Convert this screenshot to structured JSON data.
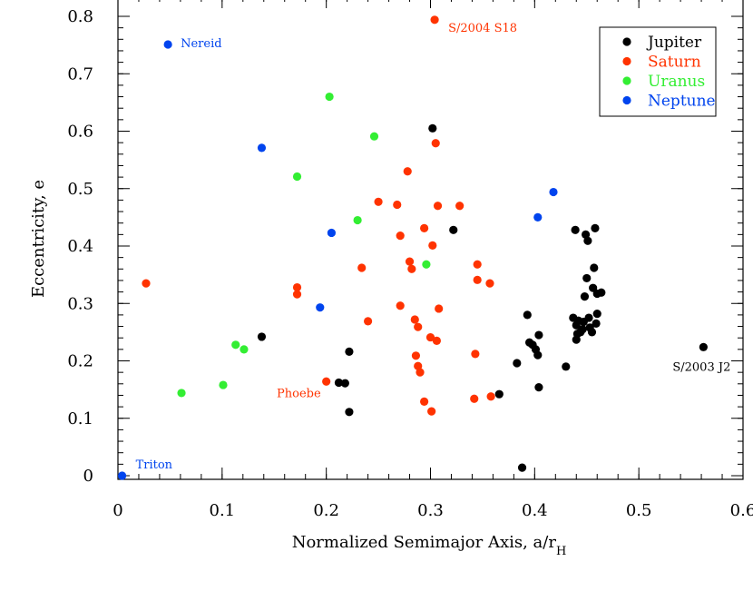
{
  "chart_data": {
    "type": "scatter",
    "xlabel": "Normalized Semimajor Axis, a/r",
    "xlabel_subscript": "H",
    "ylabel": "Eccentricity, e",
    "xlim": [
      0,
      0.6
    ],
    "ylim": [
      0,
      0.8
    ],
    "x_ticks": [
      "0",
      "0.1",
      "0.2",
      "0.3",
      "0.4",
      "0.5",
      "0.6"
    ],
    "y_ticks": [
      "0",
      "0.1",
      "0.2",
      "0.3",
      "0.4",
      "0.5",
      "0.6",
      "0.7",
      "0.8"
    ],
    "legend_position": "top-right",
    "series": [
      {
        "name": "Jupiter",
        "color": "#000000",
        "points": [
          [
            0.302,
            0.605
          ],
          [
            0.322,
            0.428
          ],
          [
            0.138,
            0.242
          ],
          [
            0.222,
            0.216
          ],
          [
            0.212,
            0.162
          ],
          [
            0.218,
            0.161
          ],
          [
            0.222,
            0.111
          ],
          [
            0.366,
            0.142
          ],
          [
            0.383,
            0.196
          ],
          [
            0.393,
            0.28
          ],
          [
            0.395,
            0.232
          ],
          [
            0.398,
            0.228
          ],
          [
            0.401,
            0.22
          ],
          [
            0.403,
            0.21
          ],
          [
            0.404,
            0.245
          ],
          [
            0.404,
            0.154
          ],
          [
            0.388,
            0.014
          ],
          [
            0.43,
            0.19
          ],
          [
            0.437,
            0.275
          ],
          [
            0.439,
            0.428
          ],
          [
            0.44,
            0.262
          ],
          [
            0.442,
            0.27
          ],
          [
            0.444,
            0.25
          ],
          [
            0.44,
            0.237
          ],
          [
            0.447,
            0.268
          ],
          [
            0.448,
            0.312
          ],
          [
            0.449,
            0.42
          ],
          [
            0.45,
            0.344
          ],
          [
            0.451,
            0.409
          ],
          [
            0.452,
            0.275
          ],
          [
            0.455,
            0.25
          ],
          [
            0.457,
            0.362
          ],
          [
            0.456,
            0.327
          ],
          [
            0.458,
            0.431
          ],
          [
            0.459,
            0.265
          ],
          [
            0.46,
            0.282
          ],
          [
            0.46,
            0.317
          ],
          [
            0.464,
            0.319
          ],
          [
            0.562,
            0.224
          ],
          [
            0.446,
            0.255
          ],
          [
            0.441,
            0.247
          ],
          [
            0.453,
            0.258
          ]
        ]
      },
      {
        "name": "Saturn",
        "color": "#ff3300",
        "points": [
          [
            0.304,
            0.794
          ],
          [
            0.305,
            0.579
          ],
          [
            0.278,
            0.53
          ],
          [
            0.25,
            0.477
          ],
          [
            0.268,
            0.472
          ],
          [
            0.307,
            0.47
          ],
          [
            0.328,
            0.47
          ],
          [
            0.294,
            0.431
          ],
          [
            0.271,
            0.418
          ],
          [
            0.302,
            0.401
          ],
          [
            0.28,
            0.373
          ],
          [
            0.282,
            0.36
          ],
          [
            0.345,
            0.368
          ],
          [
            0.345,
            0.341
          ],
          [
            0.357,
            0.335
          ],
          [
            0.234,
            0.362
          ],
          [
            0.172,
            0.328
          ],
          [
            0.172,
            0.316
          ],
          [
            0.027,
            0.335
          ],
          [
            0.271,
            0.296
          ],
          [
            0.308,
            0.291
          ],
          [
            0.285,
            0.272
          ],
          [
            0.288,
            0.259
          ],
          [
            0.24,
            0.269
          ],
          [
            0.3,
            0.241
          ],
          [
            0.306,
            0.235
          ],
          [
            0.343,
            0.212
          ],
          [
            0.286,
            0.209
          ],
          [
            0.288,
            0.191
          ],
          [
            0.29,
            0.18
          ],
          [
            0.2,
            0.164
          ],
          [
            0.294,
            0.129
          ],
          [
            0.301,
            0.112
          ],
          [
            0.342,
            0.134
          ],
          [
            0.358,
            0.138
          ]
        ]
      },
      {
        "name": "Uranus",
        "color": "#33ee33",
        "points": [
          [
            0.203,
            0.66
          ],
          [
            0.246,
            0.591
          ],
          [
            0.172,
            0.521
          ],
          [
            0.23,
            0.445
          ],
          [
            0.296,
            0.368
          ],
          [
            0.113,
            0.228
          ],
          [
            0.121,
            0.22
          ],
          [
            0.101,
            0.158
          ],
          [
            0.061,
            0.144
          ]
        ]
      },
      {
        "name": "Neptune",
        "color": "#0044ee",
        "points": [
          [
            0.048,
            0.751
          ],
          [
            0.138,
            0.571
          ],
          [
            0.418,
            0.494
          ],
          [
            0.403,
            0.45
          ],
          [
            0.205,
            0.423
          ],
          [
            0.194,
            0.293
          ],
          [
            0.004,
            0.0
          ]
        ]
      }
    ],
    "annotations": [
      {
        "text": "S/2004 S18",
        "x": 0.304,
        "y": 0.794,
        "series": "Saturn"
      },
      {
        "text": "Nereid",
        "x": 0.048,
        "y": 0.751,
        "series": "Neptune"
      },
      {
        "text": "Phoebe",
        "x": 0.2,
        "y": 0.164,
        "series": "Saturn"
      },
      {
        "text": "S/2003 J2",
        "x": 0.562,
        "y": 0.224,
        "series": "Jupiter"
      },
      {
        "text": "Triton",
        "x": 0.004,
        "y": 0.0,
        "series": "Neptune"
      }
    ]
  }
}
